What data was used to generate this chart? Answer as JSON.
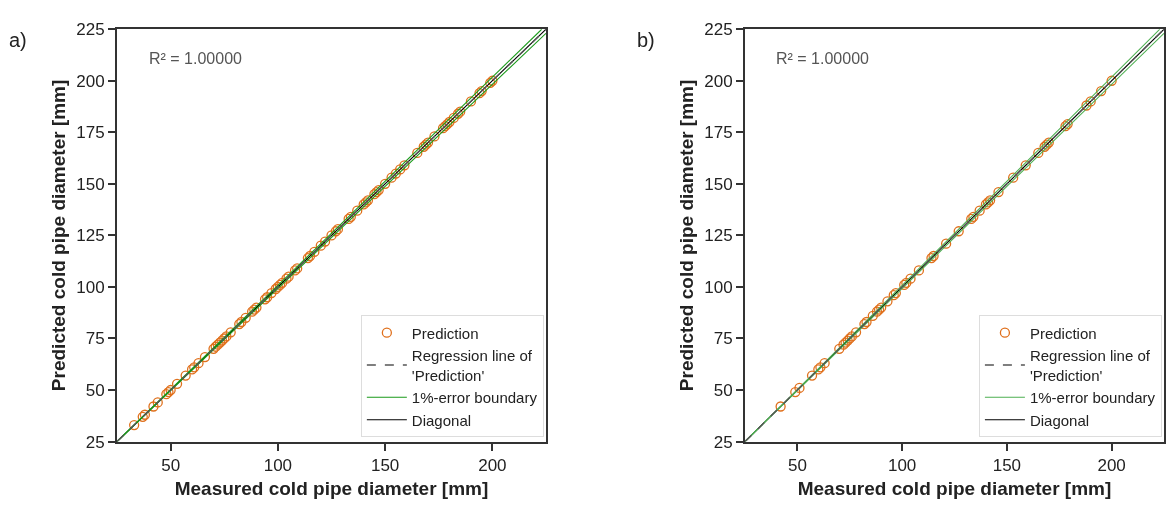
{
  "chart_data": [
    {
      "type": "scatter",
      "title": "a)",
      "xlabel": "Measured cold pipe diameter [mm]",
      "ylabel": "Predicted cold pipe diameter [mm]",
      "xlim": [
        25,
        225
      ],
      "ylim": [
        25,
        225
      ],
      "xticks": [
        50,
        100,
        150,
        200
      ],
      "yticks": [
        25,
        50,
        75,
        100,
        125,
        150,
        175,
        200,
        225
      ],
      "legend": "bottom right",
      "annotations": [
        "R² = 1.00000"
      ],
      "series": [
        {
          "name": "Prediction",
          "marker": "circle",
          "color": "#e0701c",
          "x": [
            33,
            37,
            38,
            42,
            44,
            48,
            49,
            50,
            53,
            57,
            60,
            61,
            63,
            66,
            70,
            71,
            72,
            73,
            74,
            75,
            76,
            78,
            82,
            83,
            85,
            88,
            89,
            90,
            94,
            95,
            97,
            99,
            100,
            101,
            102,
            104,
            105,
            108,
            109,
            114,
            115,
            117,
            120,
            122,
            125,
            127,
            128,
            133,
            134,
            137,
            140,
            141,
            142,
            145,
            146,
            147,
            150,
            153,
            155,
            157,
            159,
            165,
            168,
            169,
            170,
            173,
            177,
            178,
            179,
            180,
            182,
            184,
            185,
            190,
            194,
            195,
            199,
            200
          ],
          "values": [
            33,
            37,
            38,
            42,
            44,
            48,
            49,
            50,
            53,
            57,
            60,
            61,
            63,
            66,
            70,
            71,
            72,
            73,
            74,
            75,
            76,
            78,
            82,
            83,
            85,
            88,
            89,
            90,
            94,
            95,
            97,
            99,
            100,
            101,
            102,
            104,
            105,
            108,
            109,
            114,
            115,
            117,
            120,
            122,
            125,
            127,
            128,
            133,
            134,
            137,
            140,
            141,
            142,
            145,
            146,
            147,
            150,
            153,
            155,
            157,
            159,
            165,
            168,
            169,
            170,
            173,
            177,
            178,
            179,
            180,
            182,
            184,
            185,
            190,
            194,
            195,
            199,
            200
          ]
        },
        {
          "name": "Diagonal",
          "type": "line",
          "color": "#000000",
          "line_style": "solid",
          "x": [
            25,
            225
          ],
          "values": [
            25,
            225
          ]
        },
        {
          "name": "1%-error boundary",
          "type": "line",
          "color": "#1a9a1a",
          "line_style": "solid",
          "x": [
            25,
            223
          ],
          "values": [
            25,
            225
          ]
        },
        {
          "type": "line",
          "color": "#1a9a1a",
          "line_style": "solid",
          "x": [
            25,
            225
          ],
          "values": [
            25,
            223
          ]
        },
        {
          "name": "Regression line of\n'Prediction'",
          "type": "line",
          "color": "#555555",
          "line_style": "dashed",
          "x": [
            25,
            225
          ],
          "values": [
            25,
            225
          ]
        }
      ]
    },
    {
      "type": "scatter",
      "title": "b)",
      "xlabel": "Measured cold pipe diameter [mm]",
      "ylabel": "Predicted cold pipe diameter [mm]",
      "xlim": [
        25,
        225
      ],
      "ylim": [
        25,
        225
      ],
      "xticks": [
        50,
        100,
        150,
        200
      ],
      "yticks": [
        25,
        50,
        75,
        100,
        125,
        150,
        175,
        200,
        225
      ],
      "legend": "bottom right",
      "annotations": [
        "R² = 1.00000"
      ],
      "series": [
        {
          "name": "Prediction",
          "marker": "circle",
          "color": "#e0701c",
          "x": [
            42,
            49,
            51,
            57,
            60,
            61,
            63,
            70,
            72,
            73,
            74,
            75,
            76,
            78,
            82,
            83,
            86,
            88,
            89,
            90,
            93,
            96,
            97,
            101,
            102,
            104,
            108,
            114,
            115,
            121,
            127,
            133,
            134,
            137,
            140,
            141,
            142,
            146,
            153,
            159,
            165,
            168,
            169,
            170,
            178,
            179,
            188,
            190,
            195,
            200
          ],
          "values": [
            42,
            49,
            51,
            57,
            60,
            61,
            63,
            70,
            72,
            73,
            74,
            75,
            76,
            78,
            82,
            83,
            86,
            88,
            89,
            90,
            93,
            96,
            97,
            101,
            102,
            104,
            108,
            114,
            115,
            121,
            127,
            133,
            134,
            137,
            140,
            141,
            142,
            146,
            153,
            159,
            165,
            168,
            169,
            170,
            178,
            179,
            188,
            190,
            195,
            200
          ]
        },
        {
          "name": "Diagonal",
          "type": "line",
          "color": "#000000",
          "line_style": "solid",
          "x": [
            25,
            225
          ],
          "values": [
            25,
            225
          ]
        },
        {
          "name": "1%-error boundary",
          "type": "line",
          "color": "#4caf50",
          "line_style": "solid",
          "x": [
            25,
            223
          ],
          "values": [
            25,
            225
          ]
        },
        {
          "type": "line",
          "color": "#4caf50",
          "line_style": "solid",
          "x": [
            25,
            225
          ],
          "values": [
            25,
            223
          ]
        },
        {
          "name": "Regression line of\n'Prediction'",
          "type": "line",
          "color": "#555555",
          "line_style": "dashed",
          "x": [
            25,
            225
          ],
          "values": [
            25,
            225
          ]
        }
      ]
    }
  ]
}
